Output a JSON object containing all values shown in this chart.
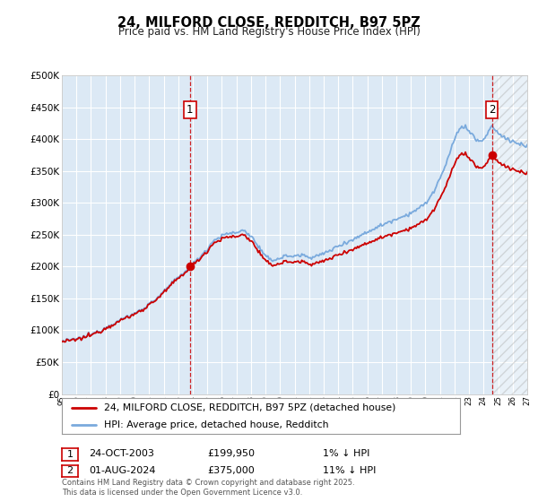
{
  "title": "24, MILFORD CLOSE, REDDITCH, B97 5PZ",
  "subtitle": "Price paid vs. HM Land Registry's House Price Index (HPI)",
  "bg_color": "#dce9f5",
  "grid_color": "#ffffff",
  "hpi_color": "#7aaadd",
  "price_color": "#cc0000",
  "marker_color": "#cc0000",
  "sale1_date": "24-OCT-2003",
  "sale1_price": 199950,
  "sale1_label": "1% ↓ HPI",
  "sale2_date": "01-AUG-2024",
  "sale2_price": 375000,
  "sale2_label": "11% ↓ HPI",
  "xmin": 1995.0,
  "xmax": 2027.0,
  "ymin": 0,
  "ymax": 500000,
  "yticks": [
    0,
    50000,
    100000,
    150000,
    200000,
    250000,
    300000,
    350000,
    400000,
    450000,
    500000
  ],
  "footer": "Contains HM Land Registry data © Crown copyright and database right 2025.\nThis data is licensed under the Open Government Licence v3.0.",
  "legend1": "24, MILFORD CLOSE, REDDITCH, B97 5PZ (detached house)",
  "legend2": "HPI: Average price, detached house, Redditch",
  "annotation1_num": "1",
  "annotation2_num": "2",
  "sale1_x": 2003.81,
  "sale2_x": 2024.58
}
